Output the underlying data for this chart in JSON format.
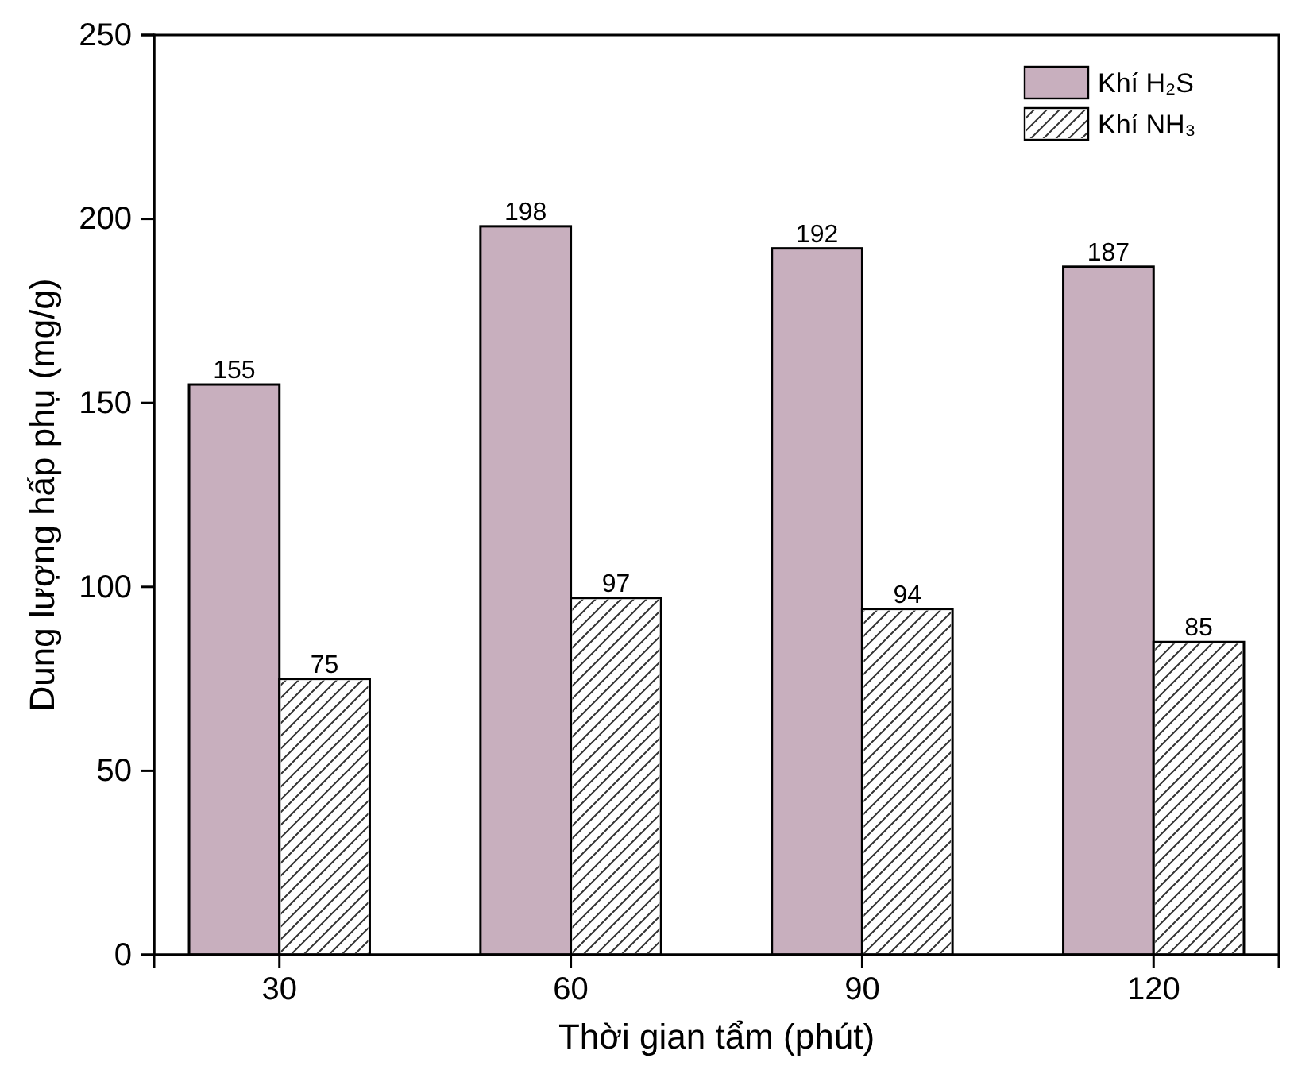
{
  "chart_data": {
    "type": "bar",
    "xlabel": "Thời gian tẩm (phút)",
    "ylabel": "Dung lượng hấp phụ (mg/g)",
    "categories": [
      "30",
      "60",
      "90",
      "120"
    ],
    "series": [
      {
        "name": "Khí H₂S",
        "color": "#c8afbe",
        "values": [
          155,
          198,
          192,
          187
        ]
      },
      {
        "name": "Khí NH₃",
        "color": "#ffffff",
        "values": [
          75,
          97,
          94,
          85
        ]
      }
    ],
    "ylim": [
      0,
      250
    ],
    "yticks": [
      0,
      50,
      100,
      150,
      200,
      250
    ],
    "grid": false,
    "legend": "top right",
    "data_labels": true
  }
}
